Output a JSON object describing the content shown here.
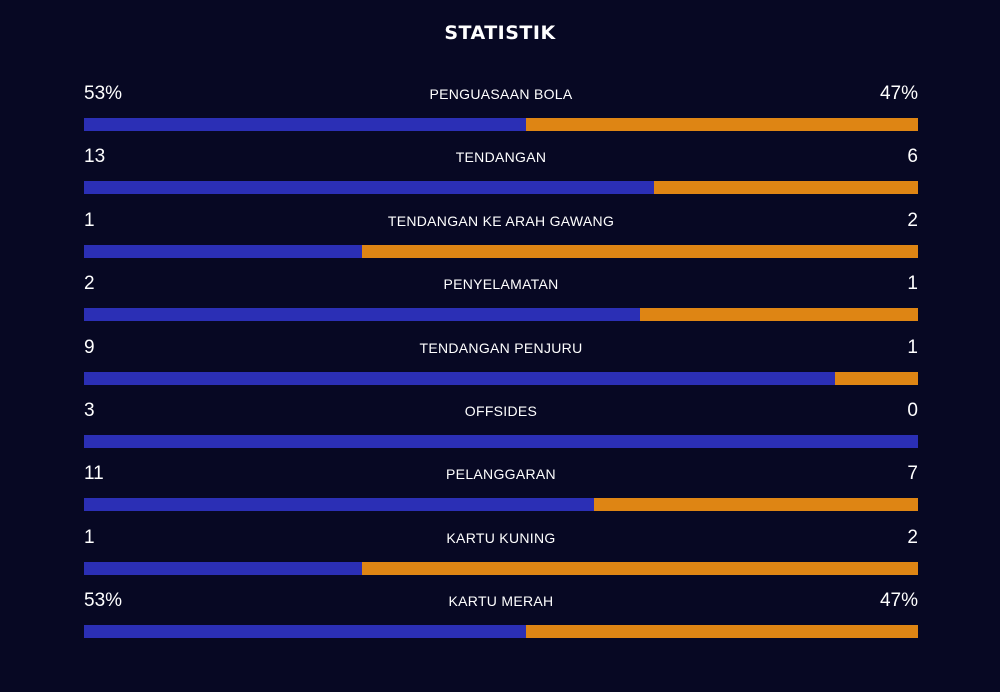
{
  "title": "STATISTIK",
  "colors": {
    "background": "#070823",
    "home": "#2b2fb5",
    "away": "#de8514"
  },
  "stats": [
    {
      "label": "PENGUASAAN BOLA",
      "home": "53%",
      "away": "47%",
      "home_share": 0.53
    },
    {
      "label": "TENDANGAN",
      "home": "13",
      "away": "6",
      "home_share": 0.684
    },
    {
      "label": "TENDANGAN KE ARAH GAWANG",
      "home": "1",
      "away": "2",
      "home_share": 0.333
    },
    {
      "label": "PENYELAMATAN",
      "home": "2",
      "away": "1",
      "home_share": 0.667
    },
    {
      "label": "TENDANGAN PENJURU",
      "home": "9",
      "away": "1",
      "home_share": 0.9
    },
    {
      "label": "OFFSIDES",
      "home": "3",
      "away": "0",
      "home_share": 1.0
    },
    {
      "label": "PELANGGARAN",
      "home": "11",
      "away": "7",
      "home_share": 0.611
    },
    {
      "label": "KARTU KUNING",
      "home": "1",
      "away": "2",
      "home_share": 0.333
    },
    {
      "label": "KARTU MERAH",
      "home": "53%",
      "away": "47%",
      "home_share": 0.53
    }
  ]
}
